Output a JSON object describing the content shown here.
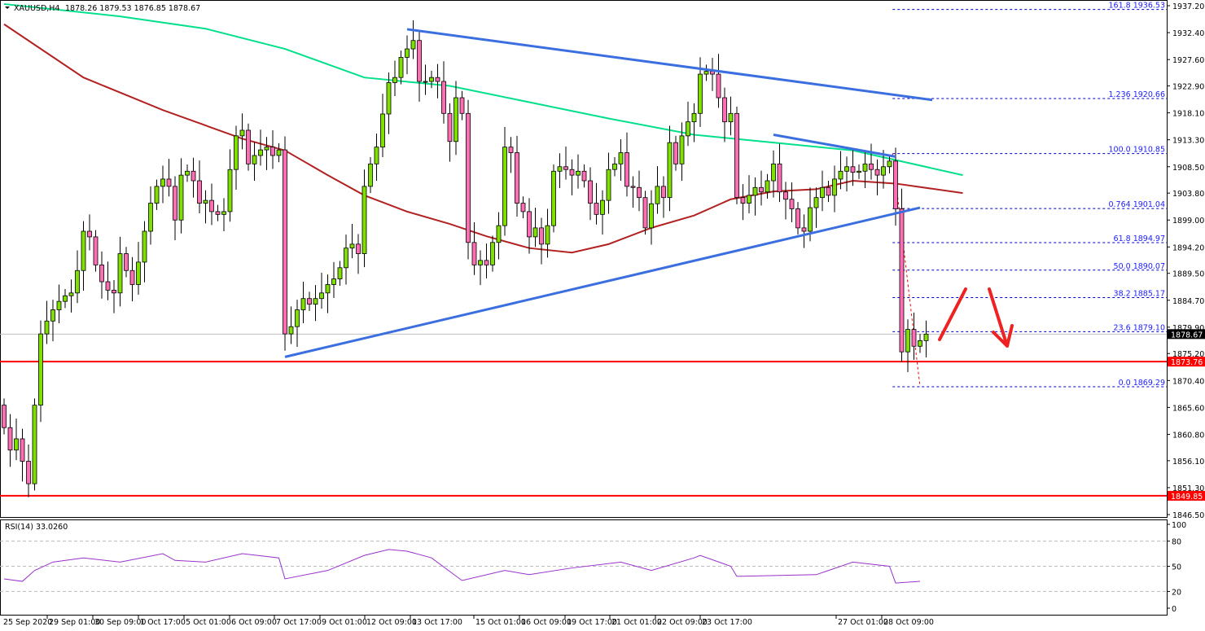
{
  "header": {
    "symbol_timeframe": "XAUUSD,H4",
    "ohlc": "1878.26 1879.53 1876.85 1878.67"
  },
  "rsi_panel": {
    "label": "RSI(14) 33.0260",
    "ticks": [
      "100",
      "80",
      "50",
      "20",
      "0"
    ]
  },
  "chart_data": {
    "type": "candlestick",
    "title": "",
    "price_ticks": [
      "1937.20",
      "1932.40",
      "1927.60",
      "1922.90",
      "1918.10",
      "1913.30",
      "1908.50",
      "1903.80",
      "1899.00",
      "1894.20",
      "1889.50",
      "1884.70",
      "1879.90",
      "1875.20",
      "1870.40",
      "1865.60",
      "1860.80",
      "1856.10",
      "1851.30",
      "1846.50"
    ],
    "ylim": [
      1846.5,
      1937.2
    ],
    "time_ticks": [
      "25 Sep 2020",
      "29 Sep 01:00",
      "30 Sep 09:00",
      "1 Oct 17:00",
      "5 Oct 01:00",
      "6 Oct 09:00",
      "7 Oct 17:00",
      "9 Oct 01:00",
      "12 Oct 09:00",
      "13 Oct 17:00",
      "15 Oct 01:00",
      "16 Oct 09:00",
      "19 Oct 17:00",
      "21 Oct 01:00",
      "22 Oct 09:00",
      "23 Oct 17:00",
      "27 Oct 01:00",
      "28 Oct 09:00"
    ],
    "closes": [
      1862,
      1858,
      1860,
      1856,
      1852,
      1866,
      1878.7,
      1881,
      1883,
      1884.5,
      1885.5,
      1886,
      1890,
      1897,
      1896,
      1891,
      1888,
      1886.5,
      1886,
      1893,
      1890,
      1887.5,
      1891.5,
      1897,
      1902,
      1905,
      1906.3,
      1905,
      1899,
      1907,
      1907.7,
      1906,
      1902,
      1902.5,
      1900.5,
      1900,
      1900.5,
      1908,
      1914,
      1915,
      1909,
      1910.5,
      1911.5,
      1912,
      1910.5,
      1911.5,
      1878.7,
      1880,
      1883,
      1885,
      1884,
      1885,
      1886,
      1887.5,
      1888.5,
      1890.5,
      1894,
      1894.7,
      1893,
      1905,
      1909,
      1912,
      1917.9,
      1923.5,
      1924.4,
      1928,
      1929.5,
      1931,
      1923.7,
      1923.7,
      1924.4,
      1923.7,
      1918,
      1913,
      1920.8,
      1918,
      1895,
      1891,
      1891.8,
      1891,
      1895,
      1898,
      1912,
      1911,
      1902,
      1900.5,
      1896,
      1897.6,
      1894.7,
      1898,
      1907.7,
      1908.5,
      1908,
      1907,
      1907.7,
      1906,
      1902,
      1900,
      1902.5,
      1908,
      1909,
      1911,
      1905,
      1904.8,
      1903,
      1897.6,
      1901.9,
      1905,
      1903,
      1912.8,
      1909,
      1914,
      1916.5,
      1918,
      1925,
      1925.5,
      1925,
      1920.8,
      1916.5,
      1918,
      1903,
      1902,
      1903.4,
      1904.8,
      1904,
      1906,
      1909,
      1904,
      1902.7,
      1901,
      1897.6,
      1897,
      1901.2,
      1903,
      1904.8,
      1903.4,
      1906.3,
      1907.7,
      1908.5,
      1907.5,
      1907.7,
      1909,
      1908,
      1907,
      1908.5,
      1909.5,
      1901,
      1875.5,
      1879.5,
      1876.5,
      1877.5,
      1878.67
    ],
    "first_open": 1866,
    "moving_averages": [
      {
        "color": "#00e08a",
        "points": [
          [
            0,
            1937.5
          ],
          [
            19,
            1935.3
          ],
          [
            33,
            1933.1
          ],
          [
            46,
            1929.5
          ],
          [
            59,
            1924.4
          ],
          [
            73,
            1922.9
          ],
          [
            86,
            1920.0
          ],
          [
            99,
            1917.1
          ],
          [
            113,
            1914.2
          ],
          [
            126,
            1912.8
          ],
          [
            139,
            1911.4
          ],
          [
            157,
            1907.0
          ]
        ]
      },
      {
        "color": "#b22222",
        "points": [
          [
            0,
            1933.9
          ],
          [
            13,
            1924.4
          ],
          [
            26,
            1918.6
          ],
          [
            39,
            1913.5
          ],
          [
            46,
            1911.4
          ],
          [
            53,
            1907.0
          ],
          [
            59,
            1903.4
          ],
          [
            66,
            1900.5
          ],
          [
            73,
            1898.3
          ],
          [
            79,
            1896.1
          ],
          [
            86,
            1894.0
          ],
          [
            93,
            1893.2
          ],
          [
            99,
            1894.7
          ],
          [
            106,
            1897.6
          ],
          [
            113,
            1899.8
          ],
          [
            119,
            1902.7
          ],
          [
            126,
            1904.1
          ],
          [
            133,
            1904.5
          ],
          [
            139,
            1906.0
          ],
          [
            146,
            1905.5
          ],
          [
            157,
            1903.8
          ]
        ]
      }
    ],
    "trendlines": [
      {
        "color": "#3b6fe0",
        "from": [
          66,
          1933.0
        ],
        "to": [
          152,
          1920.4
        ]
      },
      {
        "color": "#3b6fe0",
        "from": [
          46,
          1874.6
        ],
        "to": [
          150,
          1901.2
        ]
      },
      {
        "color": "#3b6fe0",
        "from": [
          126,
          1914.2
        ],
        "to": [
          146,
          1910.3
        ]
      }
    ],
    "horizontal_levels": [
      {
        "value": 1873.76,
        "label": "1873.76",
        "color": "#ff0000"
      },
      {
        "value": 1849.85,
        "label": "1849.85",
        "color": "#ff0000"
      }
    ],
    "current_price": {
      "value": 1878.67,
      "label": "1878.67"
    },
    "fibonacci": {
      "color": "#0000cc",
      "from_index": 145.5,
      "swing": [
        1910.85,
        1869.29
      ],
      "levels": [
        {
          "label": "161.8 1936.53",
          "value": 1936.53
        },
        {
          "label": "1.236 1920.66",
          "value": 1920.66
        },
        {
          "label": "100.0 1910.85",
          "value": 1910.85
        },
        {
          "label": "0.764 1901.04",
          "value": 1901.04
        },
        {
          "label": "61.8 1894.97",
          "value": 1894.97
        },
        {
          "label": "50.0 1890.07",
          "value": 1890.07
        },
        {
          "label": "38.2 1885.17",
          "value": 1885.17
        },
        {
          "label": "23.6 1879.10",
          "value": 1879.1
        },
        {
          "label": "0.0 1869.29",
          "value": 1869.29
        }
      ]
    },
    "rsi": {
      "color": "#9932cc",
      "period": 14,
      "last": 33.026,
      "ylim": [
        0,
        100
      ],
      "levels": [
        80,
        50,
        20
      ],
      "points": [
        [
          0,
          35
        ],
        [
          3,
          32
        ],
        [
          5,
          45
        ],
        [
          8,
          55
        ],
        [
          13,
          60
        ],
        [
          19,
          55
        ],
        [
          26,
          65
        ],
        [
          28,
          57
        ],
        [
          33,
          55
        ],
        [
          39,
          65
        ],
        [
          45,
          60
        ],
        [
          46,
          35
        ],
        [
          53,
          45
        ],
        [
          59,
          63
        ],
        [
          63,
          70
        ],
        [
          66,
          68
        ],
        [
          70,
          60
        ],
        [
          75,
          33
        ],
        [
          82,
          45
        ],
        [
          86,
          40
        ],
        [
          93,
          48
        ],
        [
          101,
          55
        ],
        [
          106,
          45
        ],
        [
          113,
          60
        ],
        [
          114,
          63
        ],
        [
          119,
          50
        ],
        [
          120,
          38
        ],
        [
          133,
          40
        ],
        [
          139,
          55
        ],
        [
          145,
          50
        ],
        [
          146,
          30
        ],
        [
          150,
          32
        ]
      ]
    },
    "annotations": [
      {
        "type": "arrow",
        "direction": "up",
        "color": "#ee2222"
      },
      {
        "type": "arrow",
        "direction": "down",
        "color": "#ee2222"
      }
    ],
    "colors": {
      "bull": "#7fe000",
      "bear": "#ff6eb4",
      "outline": "#000000"
    }
  }
}
